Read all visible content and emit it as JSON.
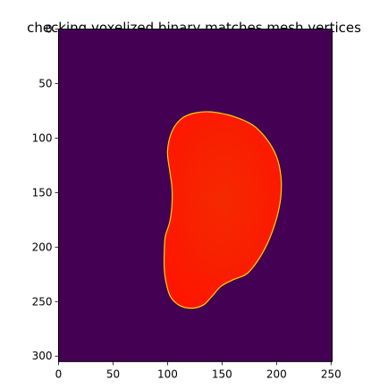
{
  "chart_data": {
    "type": "heatmap",
    "title": "checking voxelized binary matches mesh vertices",
    "xlabel": "",
    "ylabel": "",
    "image_size": [
      251,
      305
    ],
    "xlim": [
      0,
      251
    ],
    "ylim": [
      305,
      0
    ],
    "x_ticks": [
      0,
      50,
      100,
      150,
      200,
      250
    ],
    "y_ticks": [
      0,
      50,
      100,
      150,
      200,
      250,
      300
    ],
    "background_color": "#440154",
    "region_color": "#fe1d00",
    "region_edge_color": "#ffd400",
    "region_outline": [
      [
        125,
        77
      ],
      [
        140,
        76
      ],
      [
        160,
        80
      ],
      [
        178,
        88
      ],
      [
        191,
        101
      ],
      [
        200,
        117
      ],
      [
        204,
        135
      ],
      [
        204,
        153
      ],
      [
        201,
        170
      ],
      [
        196,
        186
      ],
      [
        190,
        200
      ],
      [
        181,
        215
      ],
      [
        172,
        225
      ],
      [
        160,
        230
      ],
      [
        149,
        236
      ],
      [
        140,
        246
      ],
      [
        133,
        253
      ],
      [
        123,
        256
      ],
      [
        112,
        254
      ],
      [
        103,
        246
      ],
      [
        99,
        234
      ],
      [
        97,
        220
      ],
      [
        97,
        204
      ],
      [
        98,
        190
      ],
      [
        102,
        177
      ],
      [
        104,
        162
      ],
      [
        104,
        145
      ],
      [
        102,
        130
      ],
      [
        100,
        112
      ],
      [
        104,
        94
      ],
      [
        113,
        82
      ]
    ],
    "grid": false,
    "legend": "none"
  }
}
